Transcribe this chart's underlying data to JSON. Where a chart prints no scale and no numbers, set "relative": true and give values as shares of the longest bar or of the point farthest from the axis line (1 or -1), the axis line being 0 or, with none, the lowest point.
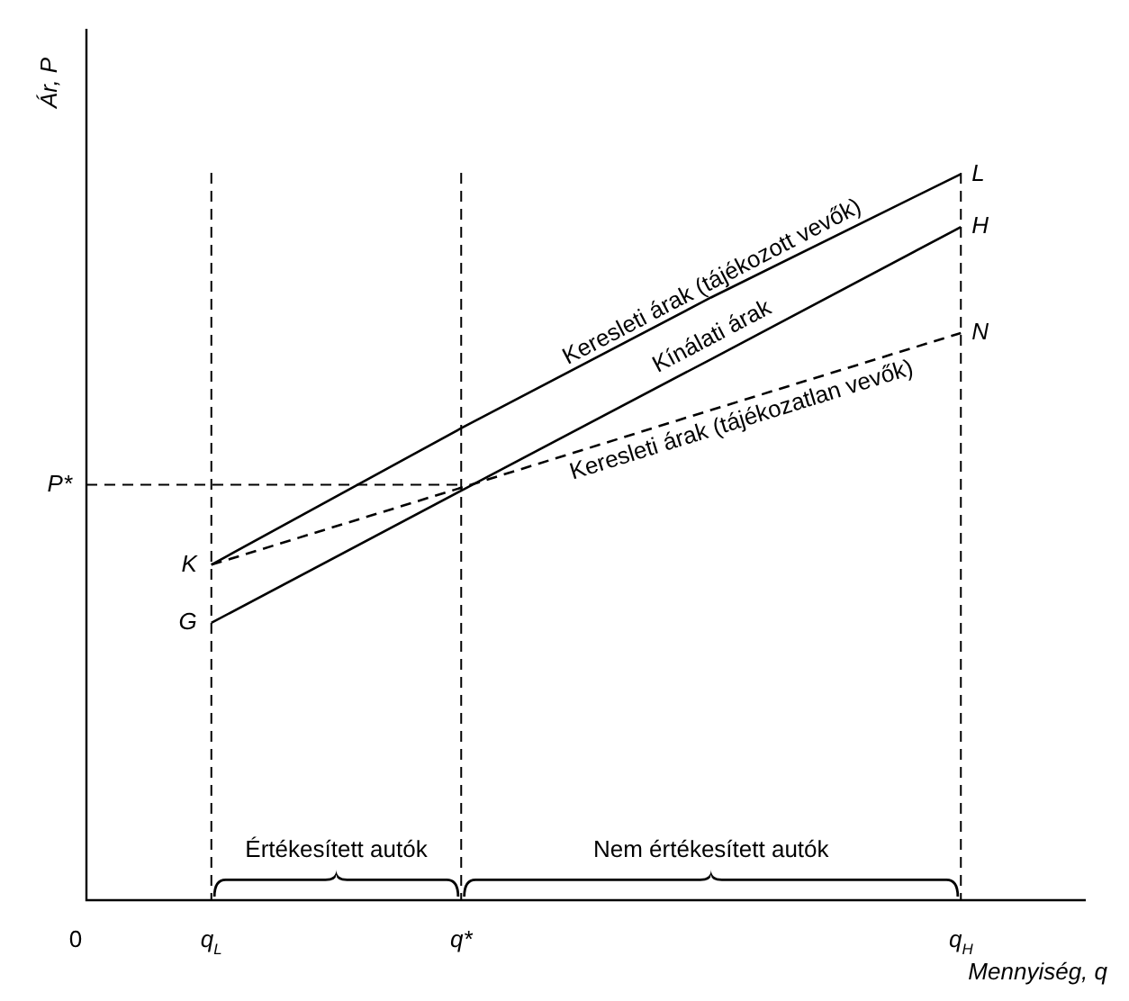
{
  "chart_data": {
    "type": "line",
    "relative": true,
    "xlabel": "Mennyiség, q",
    "ylabel": "Ár, P",
    "categories": [
      "q$_{L}$",
      "q*",
      null,
      "q$_{H}$"
    ],
    "marker": "none",
    "series": [
      {
        "name": "Keresleti árak (tájékozott vevők)",
        "color": "#000000",
        "values": [
          0.462,
          0.65,
          0.83,
          1
        ]
      },
      {
        "name": "Kínálati árak",
        "color": "#000000",
        "values": [
          0.382,
          0.564,
          0.745,
          0.927
        ]
      },
      {
        "name": "Keresleti árak (tájékozatlan vevők)",
        "color": "#000000",
        "values": [
          0.462,
          0.568,
          0.675,
          0.781
        ],
        "line_style": "dashed"
      }
    ],
    "ref_lines": [
      {
        "axis": "y",
        "value": 0.572,
        "label": "P*",
        "line_style": "dashed"
      },
      {
        "axis": "x",
        "value": "q$_{L}$",
        "line_style": "dashed"
      },
      {
        "axis": "x",
        "value": "q*",
        "line_style": "dashed"
      },
      {
        "axis": "x",
        "value": "q$_{H}$",
        "line_style": "dashed"
      }
    ],
    "annotations": [
      {
        "text": "K",
        "x": "q$_{L}$",
        "y": 0.462
      },
      {
        "text": "G",
        "x": "q$_{L}$",
        "y": 0.382
      },
      {
        "text": "L",
        "x": "q$_{H}$",
        "y": 1
      },
      {
        "text": "H",
        "x": "q$_{H}$",
        "y": 0.927
      },
      {
        "text": "N",
        "x": "q$_{H}$",
        "y": 0.781
      },
      "0",
      "Értékesített autók",
      "Nem értékesített autók"
    ]
  }
}
